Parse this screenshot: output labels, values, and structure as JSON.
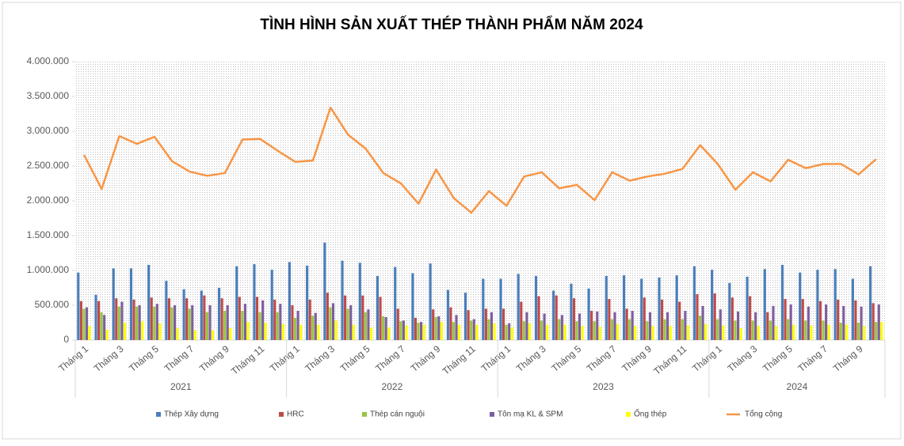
{
  "chart_data": {
    "type": "bar_line",
    "title": "TÌNH HÌNH SẢN XUẤT THÉP THÀNH PHẨM NĂM 2024",
    "categories": [
      "Tháng 1",
      null,
      "Tháng 3",
      null,
      "Tháng 5",
      null,
      "Tháng 7",
      null,
      "Tháng 9",
      null,
      "Tháng 11",
      null,
      "Tháng 1",
      null,
      "Tháng 3",
      null,
      "Tháng 5",
      null,
      "Tháng 7",
      null,
      "Tháng 9",
      null,
      "Tháng 11",
      null,
      "Tháng 1",
      null,
      "Tháng 3",
      null,
      "Tháng 5",
      null,
      "Tháng 7",
      null,
      "Tháng 9",
      null,
      "Tháng 11",
      null,
      "Tháng 1",
      null,
      "Tháng 3",
      null,
      "Tháng 5",
      null,
      "Tháng 7",
      null,
      "Tháng 9",
      null
    ],
    "category_groups": [
      "2021",
      "2022",
      "2023",
      "2024"
    ],
    "group_sizes": [
      12,
      12,
      12,
      10
    ],
    "ylim": [
      0,
      4000000
    ],
    "yticks": [
      0,
      {
        "value": 500000,
        "label": "500.000"
      },
      {
        "value": 1000000,
        "label": "1.000.000"
      },
      {
        "value": 1500000,
        "label": "1.500.000"
      },
      {
        "value": 2000000,
        "label": "2.000.000"
      },
      {
        "value": 2500000,
        "label": "2.500.000"
      },
      {
        "value": 3000000,
        "label": "3.000.000"
      },
      {
        "value": 3500000,
        "label": "3.500.000"
      },
      {
        "value": 4000000,
        "label": "4.000.000"
      }
    ],
    "legend": "bottom",
    "series": [
      {
        "name": "Thép Xây dựng",
        "color": "#4a7ebb",
        "kind": "bar",
        "values": [
          970000,
          650000,
          1030000,
          1030000,
          1080000,
          850000,
          730000,
          710000,
          750000,
          1060000,
          1090000,
          1010000,
          1120000,
          1070000,
          1400000,
          1140000,
          1110000,
          920000,
          1050000,
          960000,
          1100000,
          720000,
          680000,
          880000,
          880000,
          950000,
          920000,
          710000,
          810000,
          740000,
          920000,
          930000,
          880000,
          900000,
          930000,
          1060000,
          1010000,
          820000,
          910000,
          1020000,
          1080000,
          970000,
          1010000,
          1020000,
          880000,
          1060000
        ]
      },
      {
        "name": "HRC",
        "color": "#be4b48",
        "kind": "bar",
        "values": [
          560000,
          560000,
          600000,
          580000,
          610000,
          600000,
          600000,
          640000,
          600000,
          620000,
          620000,
          580000,
          500000,
          580000,
          680000,
          640000,
          640000,
          620000,
          450000,
          320000,
          440000,
          470000,
          430000,
          450000,
          450000,
          550000,
          630000,
          640000,
          600000,
          420000,
          590000,
          450000,
          610000,
          580000,
          550000,
          660000,
          670000,
          610000,
          630000,
          400000,
          590000,
          590000,
          560000,
          580000,
          570000,
          530000
        ]
      },
      {
        "name": "Thép cán nguội",
        "color": "#98c447",
        "kind": "bar",
        "values": [
          450000,
          400000,
          480000,
          480000,
          480000,
          470000,
          450000,
          400000,
          420000,
          420000,
          400000,
          400000,
          320000,
          350000,
          470000,
          450000,
          400000,
          340000,
          270000,
          250000,
          330000,
          260000,
          280000,
          300000,
          220000,
          270000,
          280000,
          300000,
          270000,
          270000,
          300000,
          300000,
          270000,
          300000,
          300000,
          350000,
          300000,
          280000,
          280000,
          280000,
          300000,
          280000,
          280000,
          250000,
          250000,
          260000
        ]
      },
      {
        "name": "Tôn mạ KL & SPM",
        "color": "#7d5fa0",
        "kind": "bar",
        "values": [
          470000,
          360000,
          550000,
          500000,
          520000,
          500000,
          500000,
          500000,
          500000,
          520000,
          570000,
          520000,
          420000,
          390000,
          530000,
          500000,
          440000,
          330000,
          280000,
          260000,
          340000,
          360000,
          300000,
          400000,
          240000,
          400000,
          380000,
          360000,
          380000,
          410000,
          400000,
          420000,
          400000,
          400000,
          420000,
          490000,
          440000,
          410000,
          400000,
          490000,
          510000,
          480000,
          510000,
          490000,
          480000,
          510000
        ]
      },
      {
        "name": "Ống thép",
        "color": "#ffff00",
        "kind": "bar",
        "values": [
          200000,
          150000,
          250000,
          270000,
          240000,
          170000,
          140000,
          140000,
          170000,
          260000,
          250000,
          230000,
          220000,
          220000,
          280000,
          220000,
          180000,
          180000,
          210000,
          220000,
          260000,
          220000,
          220000,
          240000,
          180000,
          240000,
          220000,
          220000,
          200000,
          190000,
          230000,
          200000,
          200000,
          200000,
          210000,
          230000,
          210000,
          170000,
          200000,
          200000,
          220000,
          210000,
          220000,
          220000,
          200000,
          260000
        ]
      },
      {
        "name": "Tổng cộng",
        "color": "#f79646",
        "kind": "line",
        "values": [
          2660000,
          2170000,
          2930000,
          2820000,
          2920000,
          2570000,
          2420000,
          2360000,
          2400000,
          2880000,
          2890000,
          2720000,
          2560000,
          2580000,
          3340000,
          2950000,
          2750000,
          2400000,
          2250000,
          1960000,
          2450000,
          2040000,
          1830000,
          2140000,
          1930000,
          2350000,
          2410000,
          2180000,
          2230000,
          2010000,
          2410000,
          2290000,
          2350000,
          2390000,
          2460000,
          2800000,
          2530000,
          2160000,
          2410000,
          2280000,
          2590000,
          2470000,
          2530000,
          2530000,
          2380000,
          2600000
        ]
      }
    ]
  }
}
